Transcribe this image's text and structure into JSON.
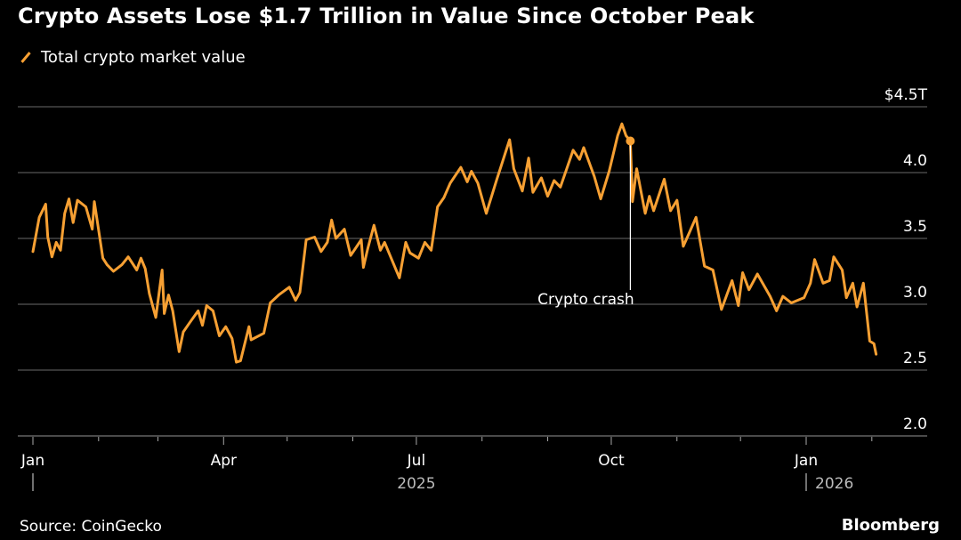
{
  "chart_data": {
    "type": "line",
    "title": "Crypto Assets Lose $1.7 Trillion in Value Since October Peak",
    "source": "Source: CoinGecko",
    "brand": "Bloomberg",
    "ylim": [
      2.0,
      4.5
    ],
    "yticks": [
      {
        "value": 4.5,
        "label": "$4.5T"
      },
      {
        "value": 4.0,
        "label": "4.0"
      },
      {
        "value": 3.5,
        "label": "3.5"
      },
      {
        "value": 3.0,
        "label": "3.0"
      },
      {
        "value": 2.5,
        "label": "2.5"
      },
      {
        "value": 2.0,
        "label": "2.0"
      }
    ],
    "xlim": [
      "2025-01-01",
      "2026-02-10"
    ],
    "xticks": [
      {
        "date": "2025-01-01",
        "label": "Jan"
      },
      {
        "date": "2025-04-01",
        "label": "Apr"
      },
      {
        "date": "2025-07-01",
        "label": "Jul"
      },
      {
        "date": "2025-10-01",
        "label": "Oct"
      },
      {
        "date": "2026-01-01",
        "label": "Jan"
      }
    ],
    "year_labels": [
      {
        "date": "2025-07-01",
        "label": "2025"
      },
      {
        "date": "2026-01-01",
        "label": "2026"
      }
    ],
    "grid": true,
    "legend": "top-left",
    "series": [
      {
        "name": "Total crypto market value",
        "color": "#f7a033",
        "points": [
          [
            "2025-01-01",
            3.4
          ],
          [
            "2025-01-04",
            3.66
          ],
          [
            "2025-01-07",
            3.76
          ],
          [
            "2025-01-08",
            3.51
          ],
          [
            "2025-01-10",
            3.36
          ],
          [
            "2025-01-12",
            3.47
          ],
          [
            "2025-01-14",
            3.41
          ],
          [
            "2025-01-16",
            3.69
          ],
          [
            "2025-01-18",
            3.8
          ],
          [
            "2025-01-20",
            3.62
          ],
          [
            "2025-01-22",
            3.79
          ],
          [
            "2025-01-26",
            3.74
          ],
          [
            "2025-01-29",
            3.57
          ],
          [
            "2025-01-30",
            3.78
          ],
          [
            "2025-02-03",
            3.35
          ],
          [
            "2025-02-05",
            3.3
          ],
          [
            "2025-02-08",
            3.25
          ],
          [
            "2025-02-12",
            3.3
          ],
          [
            "2025-02-15",
            3.36
          ],
          [
            "2025-02-19",
            3.26
          ],
          [
            "2025-02-21",
            3.35
          ],
          [
            "2025-02-23",
            3.27
          ],
          [
            "2025-02-25",
            3.08
          ],
          [
            "2025-02-28",
            2.9
          ],
          [
            "2025-03-03",
            3.26
          ],
          [
            "2025-03-04",
            2.93
          ],
          [
            "2025-03-06",
            3.07
          ],
          [
            "2025-03-08",
            2.95
          ],
          [
            "2025-03-11",
            2.64
          ],
          [
            "2025-03-13",
            2.79
          ],
          [
            "2025-03-16",
            2.86
          ],
          [
            "2025-03-20",
            2.95
          ],
          [
            "2025-03-22",
            2.84
          ],
          [
            "2025-03-24",
            2.99
          ],
          [
            "2025-03-27",
            2.95
          ],
          [
            "2025-03-30",
            2.76
          ],
          [
            "2025-04-02",
            2.83
          ],
          [
            "2025-04-05",
            2.74
          ],
          [
            "2025-04-07",
            2.56
          ],
          [
            "2025-04-09",
            2.57
          ],
          [
            "2025-04-13",
            2.83
          ],
          [
            "2025-04-14",
            2.73
          ],
          [
            "2025-04-20",
            2.78
          ],
          [
            "2025-04-23",
            3.01
          ],
          [
            "2025-04-27",
            3.07
          ],
          [
            "2025-05-02",
            3.13
          ],
          [
            "2025-05-05",
            3.03
          ],
          [
            "2025-05-07",
            3.09
          ],
          [
            "2025-05-10",
            3.49
          ],
          [
            "2025-05-14",
            3.51
          ],
          [
            "2025-05-17",
            3.4
          ],
          [
            "2025-05-20",
            3.47
          ],
          [
            "2025-05-22",
            3.64
          ],
          [
            "2025-05-24",
            3.5
          ],
          [
            "2025-05-28",
            3.57
          ],
          [
            "2025-05-31",
            3.37
          ],
          [
            "2025-06-05",
            3.49
          ],
          [
            "2025-06-06",
            3.28
          ],
          [
            "2025-06-08",
            3.42
          ],
          [
            "2025-06-11",
            3.6
          ],
          [
            "2025-06-14",
            3.41
          ],
          [
            "2025-06-16",
            3.47
          ],
          [
            "2025-06-23",
            3.2
          ],
          [
            "2025-06-26",
            3.47
          ],
          [
            "2025-06-28",
            3.39
          ],
          [
            "2025-07-02",
            3.35
          ],
          [
            "2025-07-05",
            3.47
          ],
          [
            "2025-07-08",
            3.41
          ],
          [
            "2025-07-11",
            3.74
          ],
          [
            "2025-07-14",
            3.81
          ],
          [
            "2025-07-17",
            3.92
          ],
          [
            "2025-07-22",
            4.04
          ],
          [
            "2025-07-25",
            3.93
          ],
          [
            "2025-07-27",
            4.01
          ],
          [
            "2025-07-30",
            3.92
          ],
          [
            "2025-08-03",
            3.69
          ],
          [
            "2025-08-08",
            3.95
          ],
          [
            "2025-08-10",
            4.05
          ],
          [
            "2025-08-14",
            4.25
          ],
          [
            "2025-08-16",
            4.03
          ],
          [
            "2025-08-20",
            3.86
          ],
          [
            "2025-08-23",
            4.11
          ],
          [
            "2025-08-25",
            3.85
          ],
          [
            "2025-08-29",
            3.96
          ],
          [
            "2025-09-01",
            3.82
          ],
          [
            "2025-09-04",
            3.94
          ],
          [
            "2025-09-07",
            3.89
          ],
          [
            "2025-09-13",
            4.17
          ],
          [
            "2025-09-16",
            4.1
          ],
          [
            "2025-09-18",
            4.19
          ],
          [
            "2025-09-23",
            3.97
          ],
          [
            "2025-09-26",
            3.8
          ],
          [
            "2025-09-30",
            4.01
          ],
          [
            "2025-10-04",
            4.28
          ],
          [
            "2025-10-06",
            4.37
          ],
          [
            "2025-10-08",
            4.28
          ],
          [
            "2025-10-10",
            4.24
          ],
          [
            "2025-10-11",
            3.78
          ],
          [
            "2025-10-13",
            4.03
          ],
          [
            "2025-10-17",
            3.69
          ],
          [
            "2025-10-19",
            3.82
          ],
          [
            "2025-10-21",
            3.71
          ],
          [
            "2025-10-26",
            3.95
          ],
          [
            "2025-10-29",
            3.71
          ],
          [
            "2025-11-01",
            3.79
          ],
          [
            "2025-11-04",
            3.44
          ],
          [
            "2025-11-07",
            3.55
          ],
          [
            "2025-11-10",
            3.66
          ],
          [
            "2025-11-14",
            3.29
          ],
          [
            "2025-11-18",
            3.26
          ],
          [
            "2025-11-22",
            2.96
          ],
          [
            "2025-11-27",
            3.18
          ],
          [
            "2025-11-30",
            2.99
          ],
          [
            "2025-12-02",
            3.24
          ],
          [
            "2025-12-05",
            3.11
          ],
          [
            "2025-12-09",
            3.23
          ],
          [
            "2025-12-15",
            3.06
          ],
          [
            "2025-12-18",
            2.95
          ],
          [
            "2025-12-21",
            3.06
          ],
          [
            "2025-12-25",
            3.01
          ],
          [
            "2025-12-31",
            3.05
          ],
          [
            "2026-01-03",
            3.16
          ],
          [
            "2026-01-05",
            3.34
          ],
          [
            "2026-01-09",
            3.16
          ],
          [
            "2026-01-12",
            3.18
          ],
          [
            "2026-01-14",
            3.36
          ],
          [
            "2026-01-18",
            3.26
          ],
          [
            "2026-01-20",
            3.05
          ],
          [
            "2026-01-23",
            3.16
          ],
          [
            "2026-01-25",
            2.98
          ],
          [
            "2026-01-28",
            3.16
          ],
          [
            "2026-01-31",
            2.72
          ],
          [
            "2026-02-02",
            2.7
          ],
          [
            "2026-02-03",
            2.62
          ]
        ]
      }
    ],
    "annotations": [
      {
        "date": "2025-10-10",
        "value": 4.24,
        "label": "Crypto crash"
      }
    ]
  }
}
